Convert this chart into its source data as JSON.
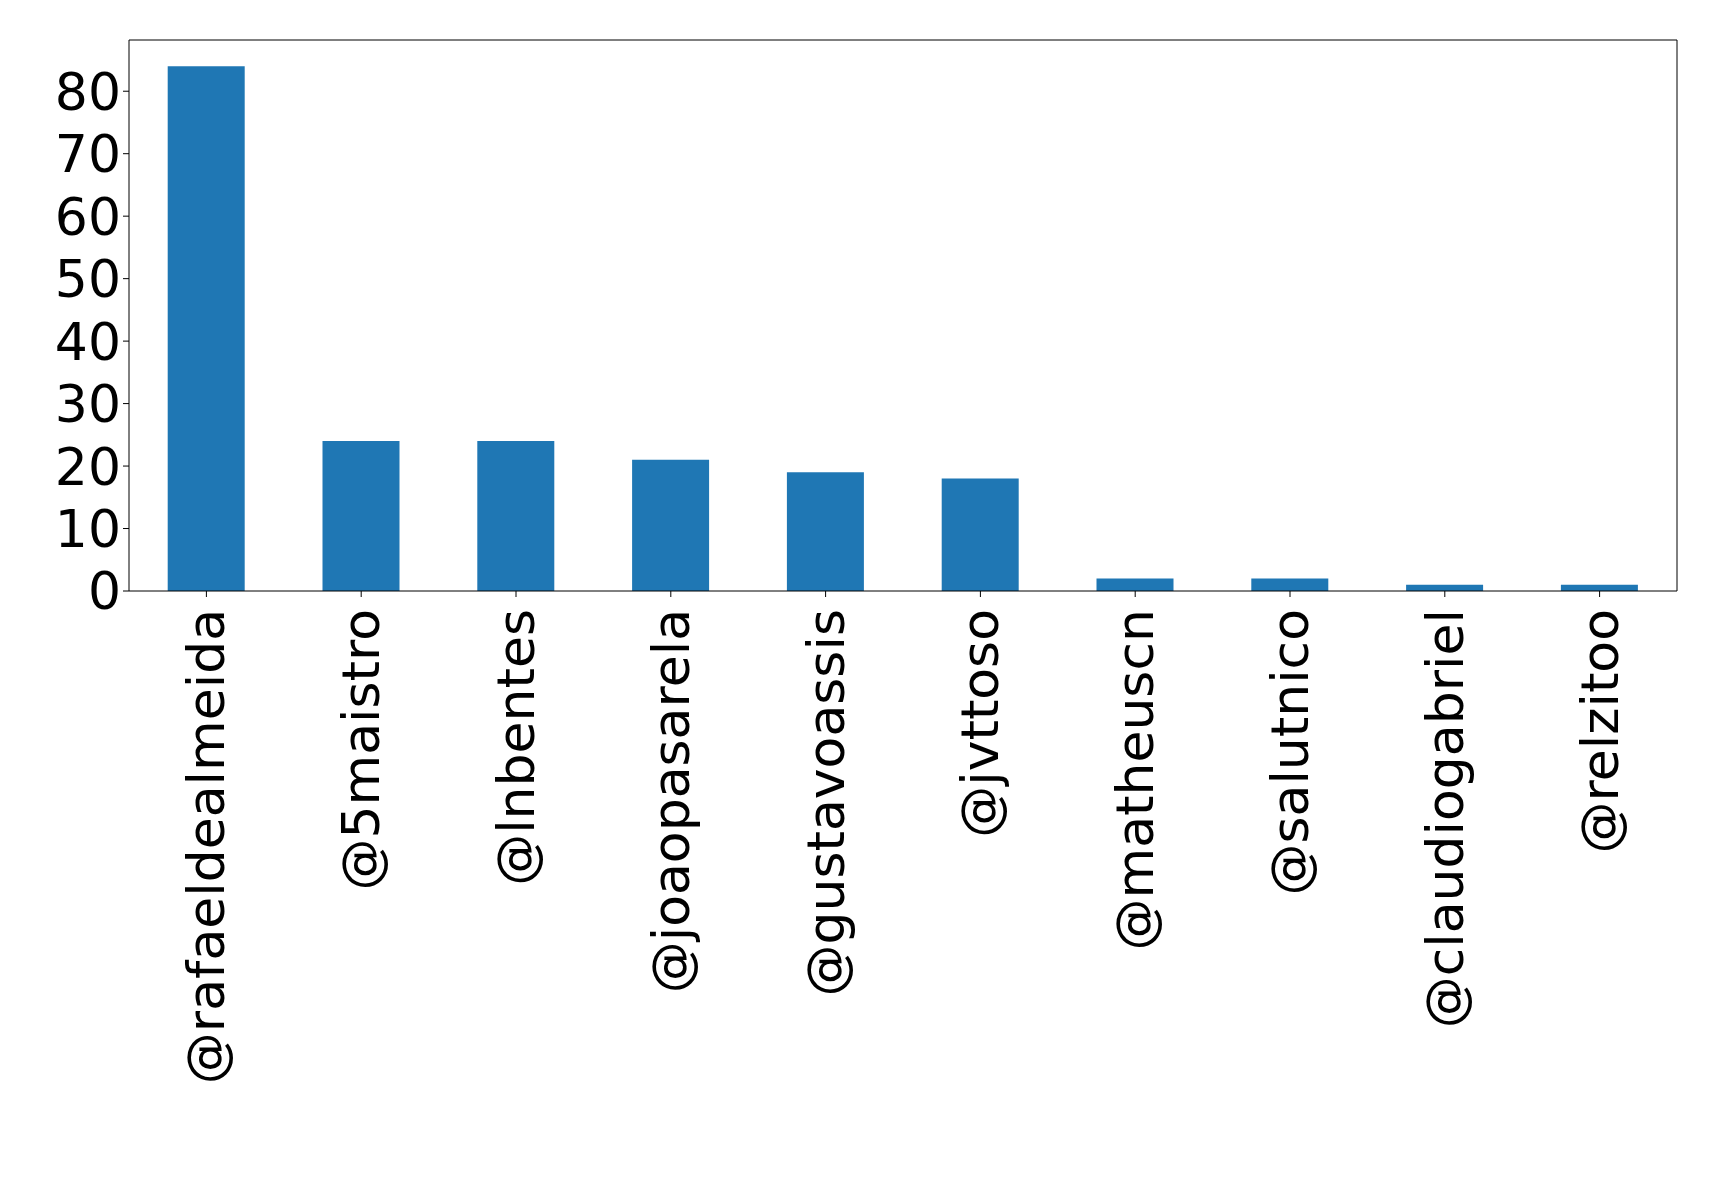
{
  "chart_data": {
    "type": "bar",
    "categories": [
      "@rafaeldealmeida",
      "@5maistro",
      "@lnbentes",
      "@joaopasarela",
      "@gustavoassis",
      "@jvttoso",
      "@matheuscn",
      "@salutnico",
      "@claudiogabriel",
      "@relzitoo"
    ],
    "values": [
      84,
      24,
      24,
      21,
      19,
      18,
      2,
      2,
      1,
      1
    ],
    "color": "#1f77b4",
    "ylim": [
      0,
      88.2
    ],
    "yticks": [
      0,
      10,
      20,
      30,
      40,
      50,
      60,
      70,
      80
    ]
  }
}
